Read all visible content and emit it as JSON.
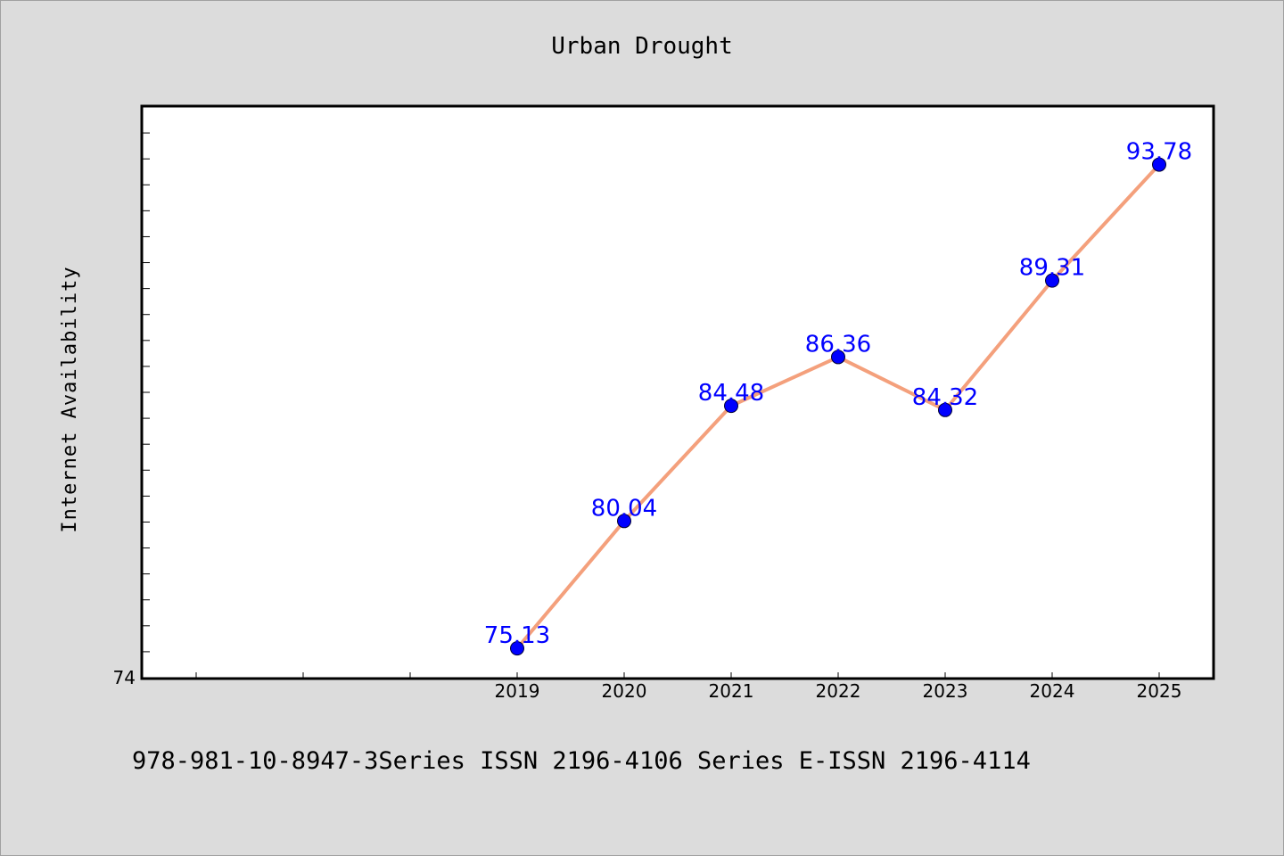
{
  "chart_data": {
    "type": "line",
    "title": "Urban Drought",
    "xlabel": "",
    "ylabel": "Internet Availability",
    "x": [
      "2019",
      "2020",
      "2021",
      "2022",
      "2023",
      "2024",
      "2025"
    ],
    "series": [
      {
        "values": [
          75.13,
          80.04,
          84.48,
          86.36,
          84.32,
          89.31,
          93.78
        ]
      }
    ],
    "data_labels": [
      "75.13",
      "80.04",
      "84.48",
      "86.36",
      "84.32",
      "89.31",
      "93.78"
    ],
    "y_tick_labels": [
      "74"
    ],
    "ylim": [
      74,
      96
    ],
    "grid": false,
    "line_color": "#f4a07c",
    "marker_color": "#0000ff",
    "label_color": "#0000ff"
  },
  "footer": "978-981-10-8947-3Series ISSN 2196-4106 Series E-ISSN 2196-4114"
}
